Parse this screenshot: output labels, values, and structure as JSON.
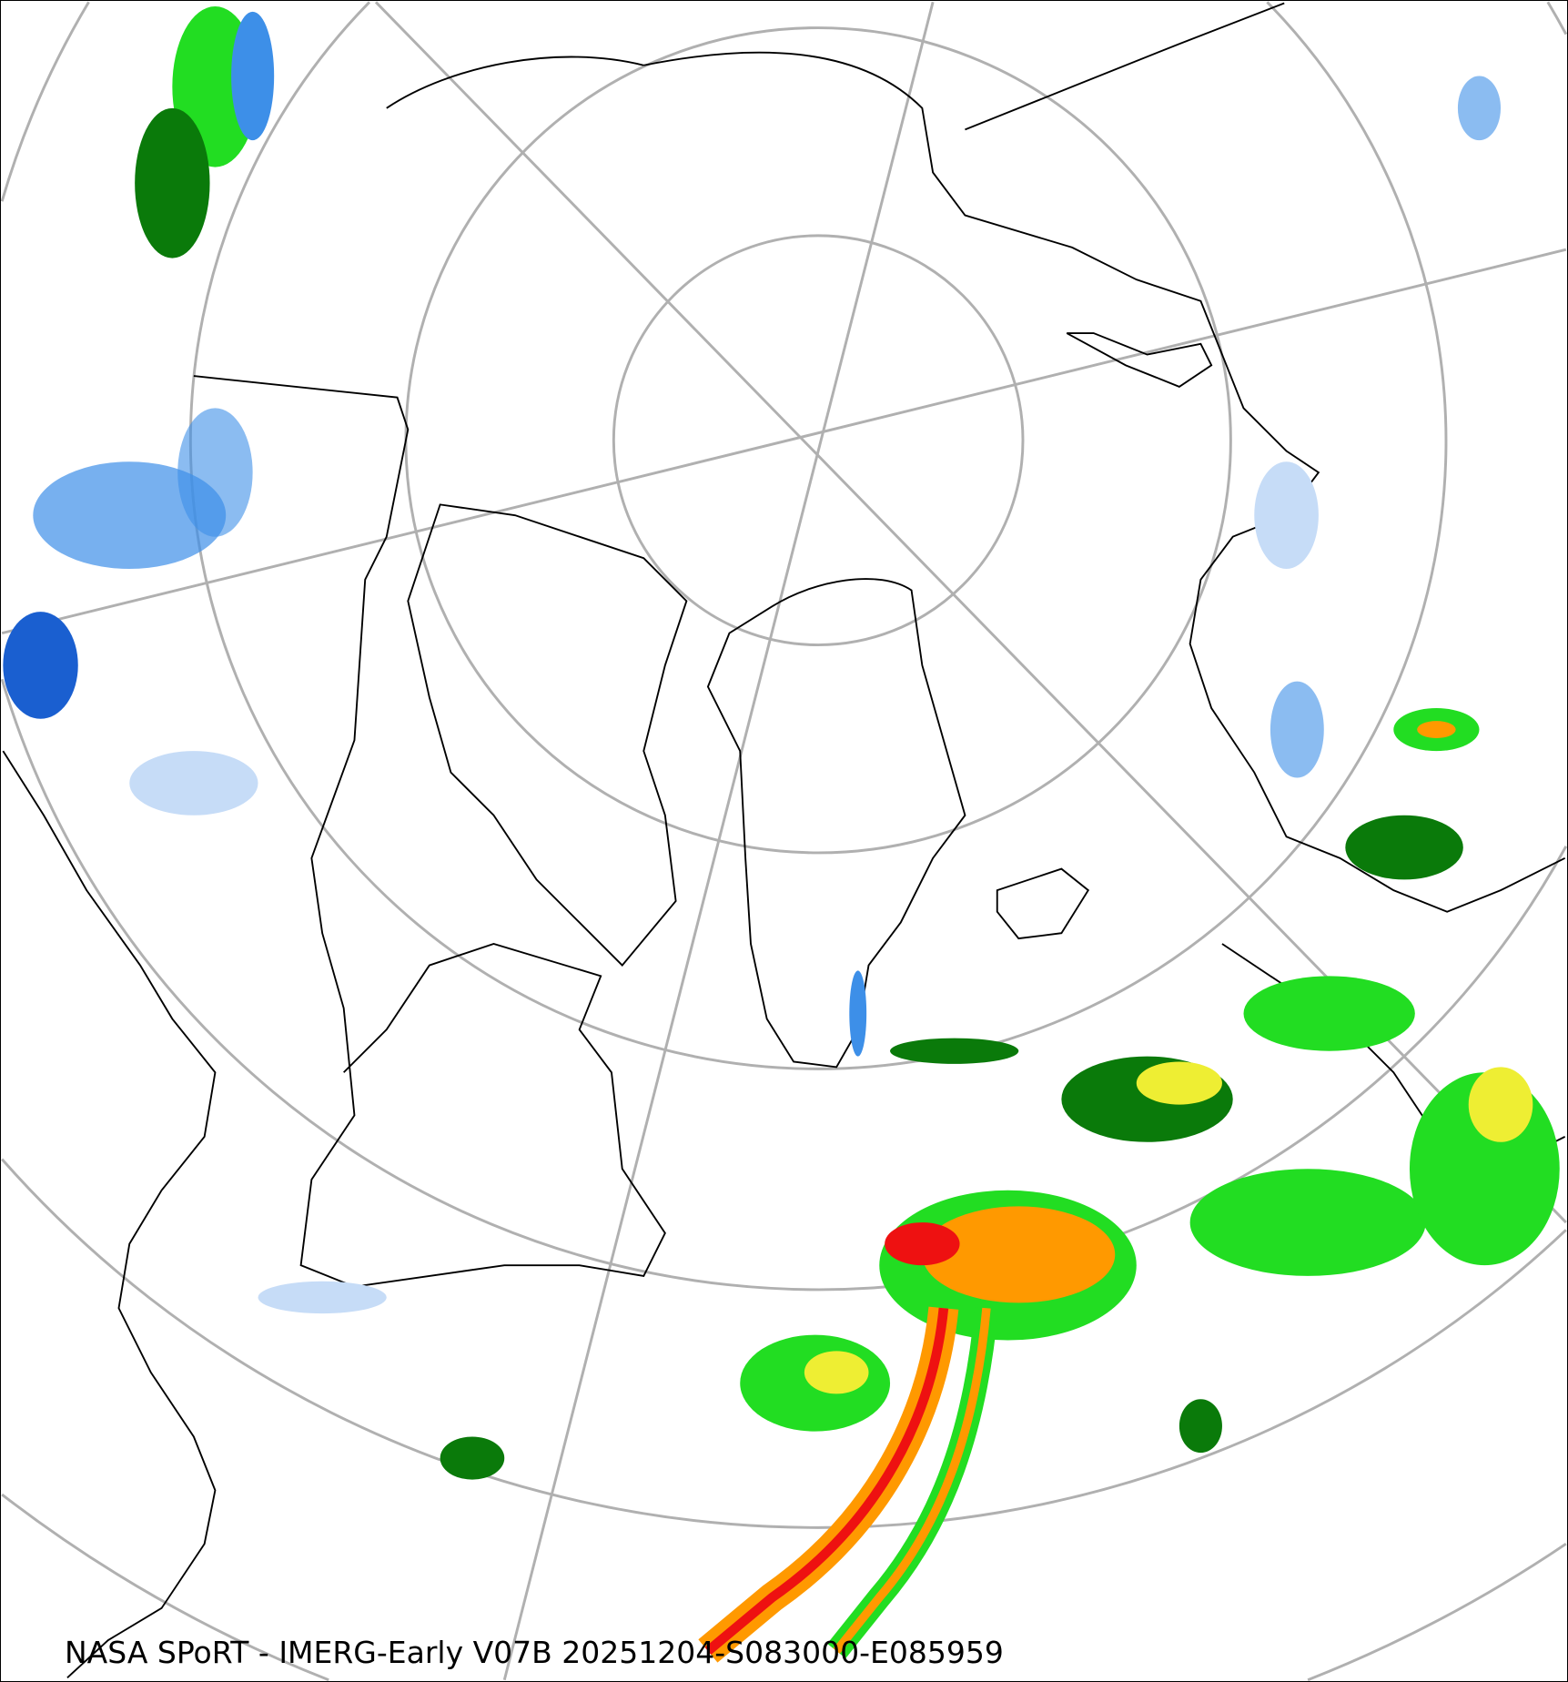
{
  "map": {
    "projection": "north-polar-stereographic",
    "caption": "NASA SPoRT - IMERG-Early V07B 20251204-S083000-E085959",
    "colors": {
      "graticule": "#b0b0b0",
      "coastline": "#000000",
      "precip_light_blue": "#c6dcf7",
      "precip_blue": "#3d8fe8",
      "precip_dark_blue": "#1a5fd0",
      "precip_dark_green": "#0a7a0a",
      "precip_green": "#22dd22",
      "precip_yellow": "#eeee33",
      "precip_orange": "#ff9900",
      "precip_red": "#ee1111",
      "precip_magenta": "#ff33cc"
    }
  }
}
